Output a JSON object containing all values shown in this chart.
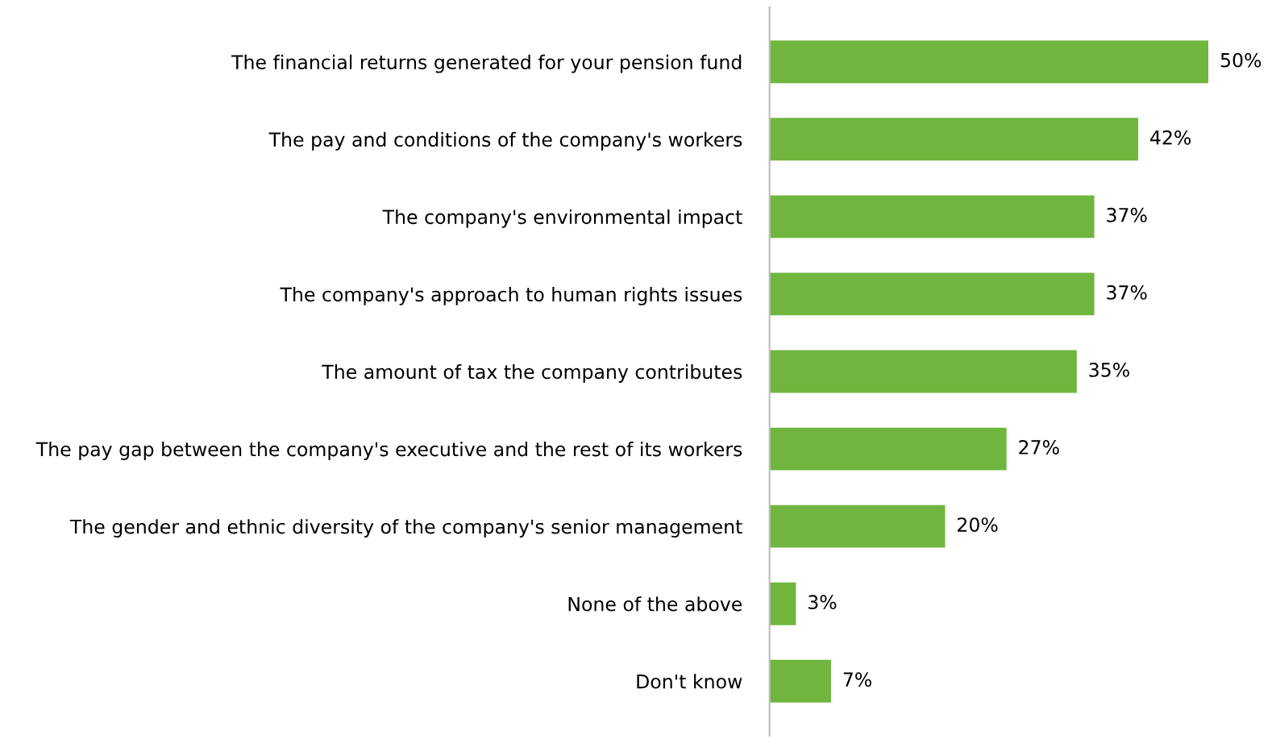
{
  "chart_data": {
    "type": "bar",
    "orientation": "horizontal",
    "categories": [
      "The financial returns generated for your pension fund",
      "The pay and conditions of the company's workers",
      "The company's environmental impact",
      "The company's approach to human rights issues",
      "The amount of tax the company contributes",
      "The pay gap between the company's executive and the rest of its workers",
      "The gender and ethnic diversity of the company's senior management",
      "None of the above",
      "Don't know"
    ],
    "values": [
      50,
      42,
      37,
      37,
      35,
      27,
      20,
      3,
      7
    ],
    "value_labels": [
      "50%",
      "42%",
      "37%",
      "37%",
      "35%",
      "27%",
      "20%",
      "3%",
      "7%"
    ],
    "color": "#70b63e",
    "grid": false,
    "legend": false
  }
}
